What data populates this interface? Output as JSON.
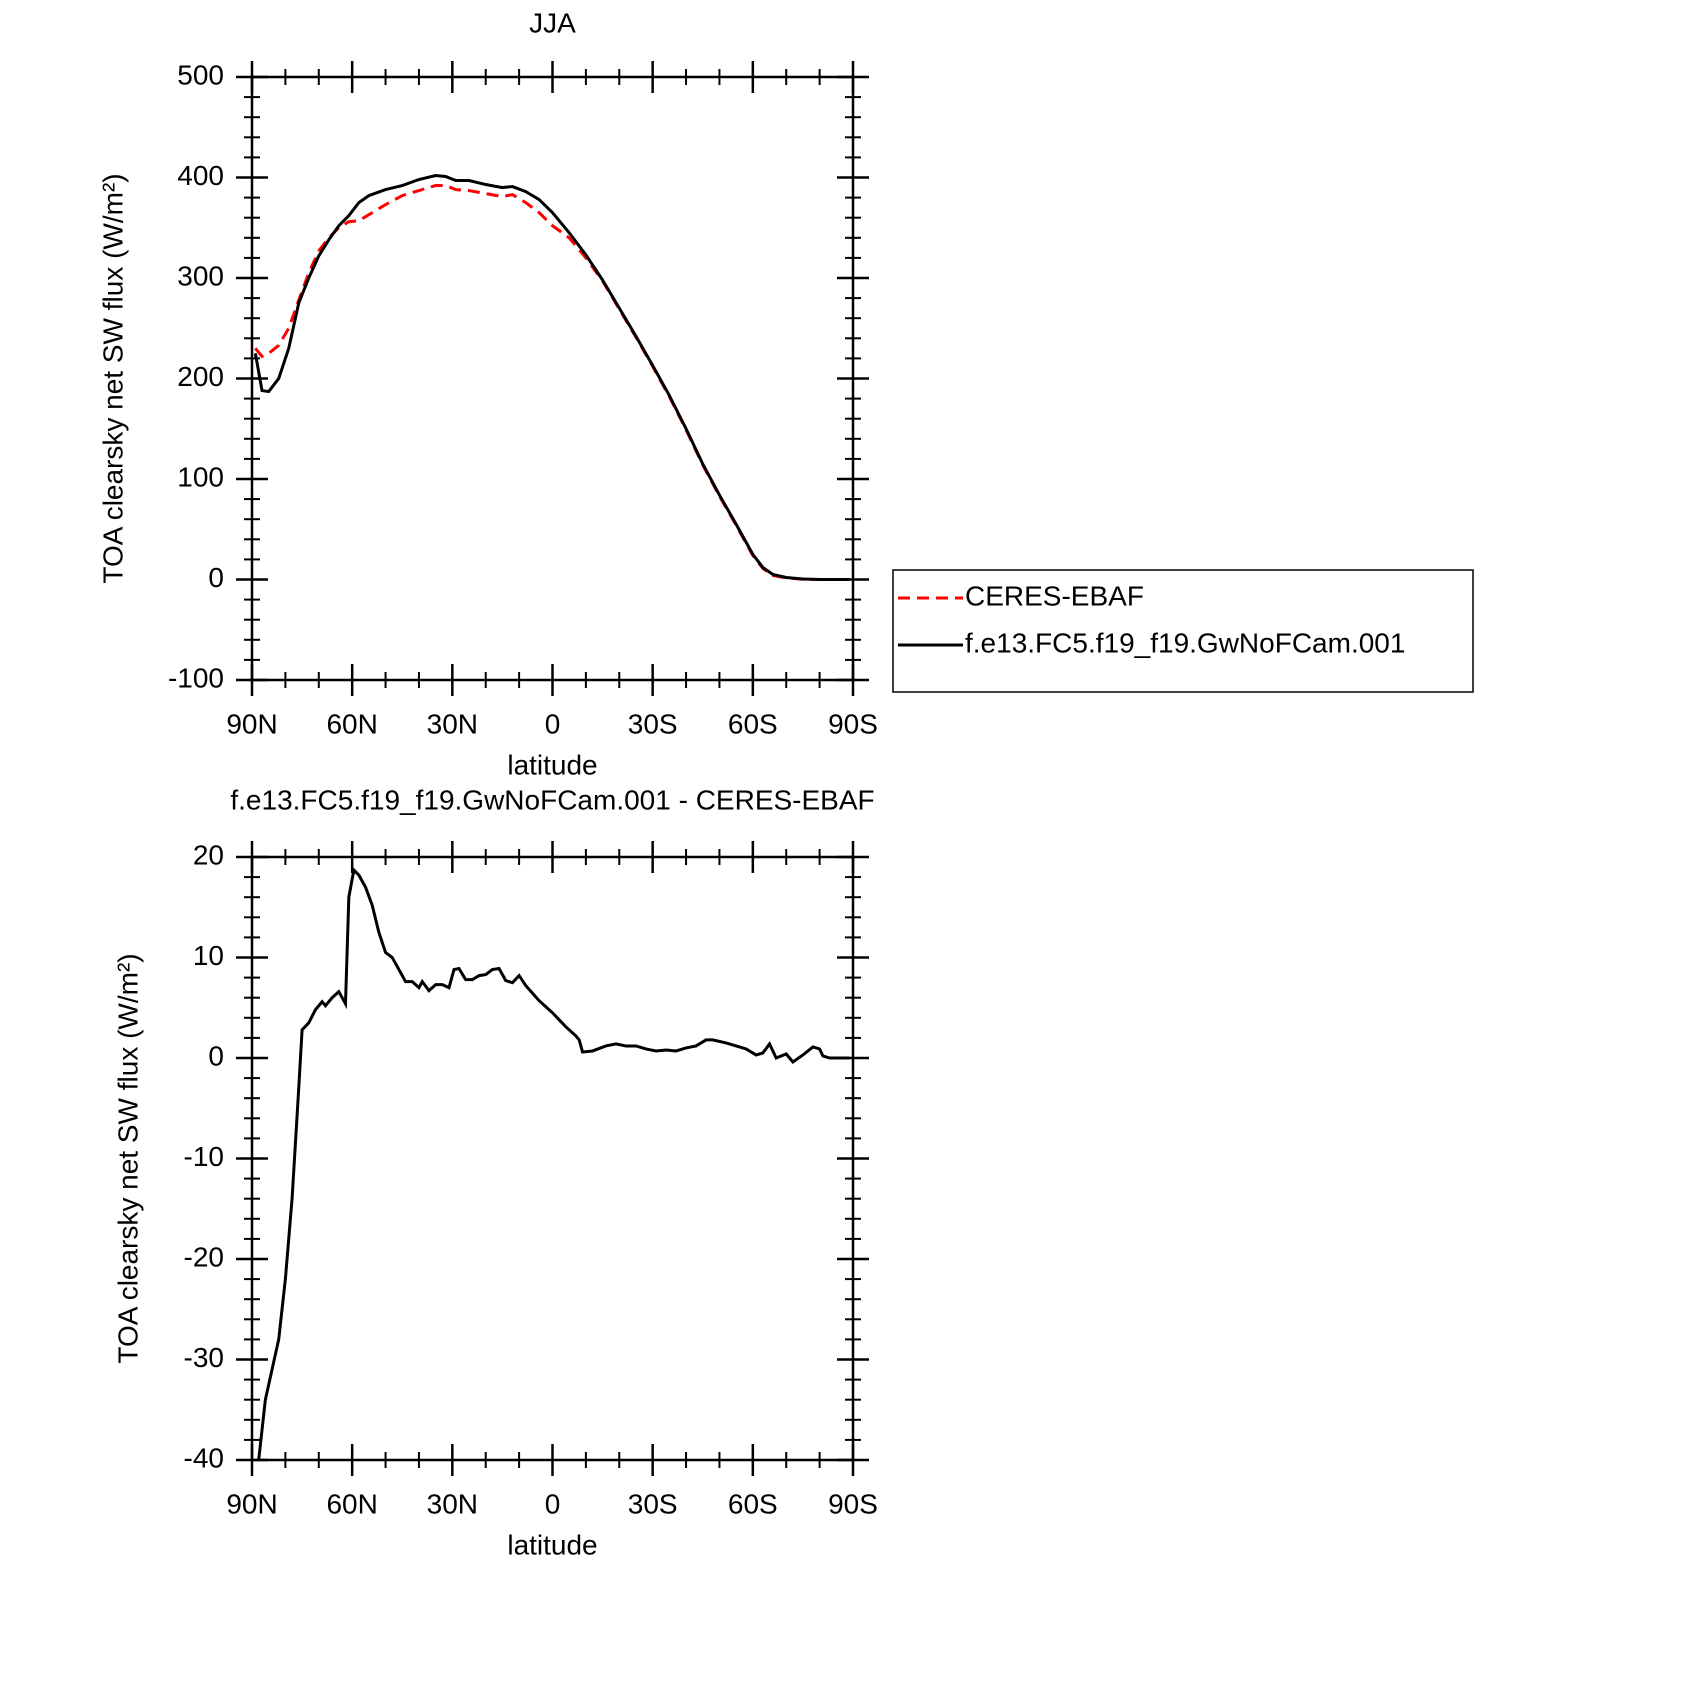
{
  "chart_data": [
    {
      "type": "line",
      "title": "JJA",
      "xlabel": "latitude",
      "ylabel": "TOA clearsky net SW flux (W/m²)",
      "x": [
        89,
        87,
        85,
        82,
        79,
        76,
        73,
        70,
        67,
        64,
        61,
        58,
        55,
        50,
        45,
        40,
        35,
        32,
        29,
        25,
        20,
        15,
        12,
        8,
        4,
        0,
        -5,
        -10,
        -15,
        -20,
        -25,
        -30,
        -35,
        -40,
        -45,
        -50,
        -55,
        -60,
        -63,
        -66,
        -70,
        -75,
        -80,
        -85,
        -89
      ],
      "series": [
        {
          "name": "CERES-EBAF",
          "color": "#ff0000",
          "dash": true,
          "values": [
            230,
            222,
            225,
            233,
            250,
            278,
            305,
            327,
            340,
            350,
            356,
            357,
            363,
            373,
            382,
            387,
            392,
            392,
            388,
            387,
            384,
            381,
            383,
            375,
            365,
            352,
            340,
            320,
            297,
            269,
            241,
            212,
            182,
            149,
            114,
            83,
            54,
            24,
            11,
            4,
            1.5,
            0.3,
            0,
            0,
            0
          ]
        },
        {
          "name": "f.e13.FC5.f19_f19.GwNoFCam.001",
          "color": "#000000",
          "dash": false,
          "values": [
            225,
            188,
            187,
            200,
            230,
            275,
            300,
            322,
            338,
            352,
            362,
            375,
            382,
            388,
            392,
            398,
            402,
            401,
            397,
            397,
            393,
            390,
            391,
            386,
            378,
            365,
            345,
            323,
            298,
            270,
            242,
            213,
            183,
            150,
            115,
            84,
            55,
            25,
            12,
            5,
            2,
            0.5,
            0,
            0,
            0
          ]
        }
      ],
      "xlim": [
        90,
        -90
      ],
      "xticks": [
        {
          "value": 90,
          "label": "90N"
        },
        {
          "value": 60,
          "label": "60N"
        },
        {
          "value": 30,
          "label": "30N"
        },
        0,
        {
          "value": -30,
          "label": "30S"
        },
        {
          "value": -60,
          "label": "60S"
        },
        {
          "value": -90,
          "label": "90S"
        }
      ],
      "ylim": [
        -100,
        500
      ],
      "yticks": [
        -100,
        0,
        100,
        200,
        300,
        400,
        500
      ]
    },
    {
      "type": "line",
      "title": "f.e13.FC5.f19_f19.GwNoFCam.001 - CERES-EBAF",
      "xlabel": "latitude",
      "ylabel": "TOA clearsky net SW flux (W/m²)",
      "x": [
        88,
        86,
        84,
        82,
        80,
        78,
        76,
        75,
        73,
        71,
        69,
        68,
        66,
        64,
        62,
        61,
        59.5,
        58,
        56,
        54,
        52,
        50,
        48,
        46,
        44,
        42,
        40,
        39,
        37,
        35,
        33,
        31,
        29.5,
        28,
        26,
        24,
        22,
        20,
        18,
        16,
        14,
        12,
        10,
        8,
        4,
        0,
        -4,
        -7,
        -8,
        -9,
        -12,
        -16,
        -19,
        -22,
        -25,
        -28,
        -31,
        -34,
        -37,
        -40,
        -43,
        -46,
        -48,
        -52,
        -55,
        -58,
        -61,
        -63,
        -65,
        -67,
        -70,
        -72,
        -75,
        -78,
        -80,
        -81,
        -83,
        -85,
        -89
      ],
      "series": [
        {
          "name": null,
          "color": "#000000",
          "dash": false,
          "values": [
            -40,
            -34,
            -31,
            -28,
            -22,
            -14,
            -3,
            2.8,
            3.5,
            4.8,
            5.6,
            5.2,
            6.0,
            6.6,
            5.4,
            16,
            18.7,
            18.2,
            17,
            15.2,
            12.5,
            10.5,
            10,
            8.8,
            7.6,
            7.6,
            7,
            7.6,
            6.7,
            7.3,
            7.3,
            7,
            8.8,
            8.9,
            7.8,
            7.8,
            8.2,
            8.3,
            8.8,
            8.9,
            7.7,
            7.5,
            8.2,
            7.2,
            5.7,
            4.5,
            3.1,
            2.2,
            1.8,
            0.6,
            0.7,
            1.2,
            1.4,
            1.2,
            1.2,
            0.9,
            0.7,
            0.8,
            0.7,
            1.0,
            1.2,
            1.8,
            1.8,
            1.5,
            1.2,
            0.9,
            0.3,
            0.5,
            1.4,
            0,
            0.4,
            -0.4,
            0.3,
            1.1,
            0.9,
            0.2,
            0,
            0,
            0
          ]
        }
      ],
      "xlim": [
        90,
        -90
      ],
      "xticks": [
        {
          "value": 90,
          "label": "90N"
        },
        {
          "value": 60,
          "label": "60N"
        },
        {
          "value": 30,
          "label": "30N"
        },
        0,
        {
          "value": -30,
          "label": "30S"
        },
        {
          "value": -60,
          "label": "60S"
        },
        {
          "value": -90,
          "label": "90S"
        }
      ],
      "ylim": [
        -40,
        20
      ],
      "yticks": [
        -40,
        -30,
        -20,
        -10,
        0,
        10,
        20
      ]
    }
  ]
}
